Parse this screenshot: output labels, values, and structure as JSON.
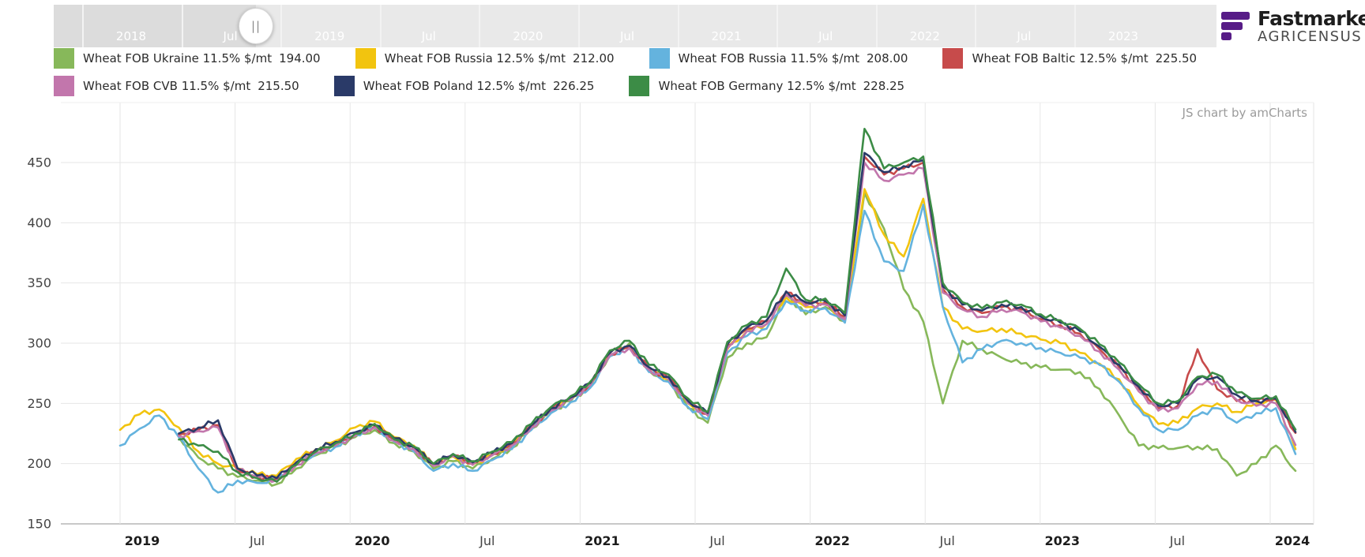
{
  "brand": {
    "name": "Fastmarkets",
    "sub": "AGRICENSUS",
    "logo_color": "#571C87"
  },
  "watermark": "JS chart by amCharts",
  "navigator": {
    "labels": [
      "2018",
      "Jul",
      "2019",
      "Jul",
      "2020",
      "Jul",
      "2021",
      "Jul",
      "2022",
      "Jul",
      "2023"
    ],
    "grabber_glyph": "||"
  },
  "legend": {
    "rows": [
      [
        {
          "label": "Wheat FOB Ukraine 11.5% $/mt",
          "value": "194.00",
          "color": "#87B85A"
        },
        {
          "label": "Wheat FOB Russia 12.5% $/mt",
          "value": "212.00",
          "color": "#F2C40F"
        },
        {
          "label": "Wheat FOB Russia 11.5% $/mt",
          "value": "208.00",
          "color": "#64B3DE"
        },
        {
          "label": "Wheat FOB Baltic 12.5% $/mt",
          "value": "225.50",
          "color": "#C74B4B"
        }
      ],
      [
        {
          "label": "Wheat FOB CVB 11.5% $/mt",
          "value": "215.50",
          "color": "#C276AC"
        },
        {
          "label": "Wheat FOB Poland 12.5% $/mt",
          "value": "226.25",
          "color": "#2A3A68"
        },
        {
          "label": "Wheat FOB Germany 12.5% $/mt",
          "value": "228.25",
          "color": "#3C8C46"
        }
      ]
    ]
  },
  "chart_data": {
    "type": "line",
    "unit": "$/mt",
    "ylim": [
      150,
      480
    ],
    "y_ticks": [
      450,
      400,
      350,
      300,
      250,
      200,
      150
    ],
    "x_axis_labels": [
      "2019",
      "Jul",
      "2020",
      "Jul",
      "2021",
      "Jul",
      "2022",
      "Jul",
      "2023",
      "Jul",
      "2024"
    ],
    "months": [
      "2019-01",
      "2019-02",
      "2019-03",
      "2019-04",
      "2019-05",
      "2019-06",
      "2019-07",
      "2019-08",
      "2019-09",
      "2019-10",
      "2019-11",
      "2019-12",
      "2020-01",
      "2020-02",
      "2020-03",
      "2020-04",
      "2020-05",
      "2020-06",
      "2020-07",
      "2020-08",
      "2020-09",
      "2020-10",
      "2020-11",
      "2020-12",
      "2021-01",
      "2021-02",
      "2021-03",
      "2021-04",
      "2021-05",
      "2021-06",
      "2021-07",
      "2021-08",
      "2021-09",
      "2021-10",
      "2021-11",
      "2021-12",
      "2022-01",
      "2022-02",
      "2022-03",
      "2022-04",
      "2022-05",
      "2022-06",
      "2022-07",
      "2022-08",
      "2022-09",
      "2022-10",
      "2022-11",
      "2022-12",
      "2023-01",
      "2023-02",
      "2023-03",
      "2023-04",
      "2023-05",
      "2023-06",
      "2023-07",
      "2023-08",
      "2023-09",
      "2023-10",
      "2023-11",
      "2023-12",
      "2024-01"
    ],
    "series": [
      {
        "name": "Wheat FOB Ukraine 11.5% $/mt",
        "color": "#87B85A",
        "last": 194.0,
        "values": [
          null,
          null,
          null,
          222,
          205,
          196,
          189,
          186,
          183,
          196,
          207,
          214,
          222,
          228,
          217,
          210,
          196,
          202,
          196,
          204,
          213,
          229,
          243,
          252,
          264,
          290,
          300,
          277,
          268,
          246,
          234,
          288,
          300,
          305,
          340,
          324,
          330,
          318,
          425,
          395,
          345,
          318,
          250,
          302,
          295,
          288,
          283,
          280,
          278,
          276,
          262,
          240,
          215,
          213,
          213,
          214,
          212,
          190,
          200,
          215,
          194
        ]
      },
      {
        "name": "Wheat FOB Russia 12.5% $/mt",
        "color": "#F2C40F",
        "last": 212.0,
        "values": [
          228,
          241,
          245,
          230,
          210,
          200,
          196,
          191,
          190,
          204,
          212,
          219,
          230,
          235,
          222,
          215,
          200,
          206,
          199,
          207,
          216,
          232,
          245,
          254,
          266,
          292,
          298,
          278,
          270,
          250,
          240,
          295,
          310,
          316,
          338,
          330,
          332,
          320,
          428,
          390,
          372,
          420,
          330,
          312,
          310,
          312,
          308,
          303,
          300,
          292,
          283,
          270,
          248,
          233,
          234,
          246,
          250,
          243,
          250,
          253,
          212
        ]
      },
      {
        "name": "Wheat FOB Russia 11.5% $/mt",
        "color": "#64B3DE",
        "last": 208.0,
        "values": [
          215,
          229,
          240,
          222,
          196,
          176,
          186,
          184,
          186,
          199,
          208,
          214,
          224,
          230,
          218,
          210,
          194,
          200,
          194,
          203,
          212,
          228,
          242,
          251,
          263,
          289,
          296,
          276,
          268,
          247,
          237,
          292,
          306,
          312,
          335,
          327,
          329,
          317,
          410,
          368,
          360,
          415,
          330,
          284,
          295,
          302,
          300,
          296,
          292,
          288,
          282,
          268,
          246,
          228,
          228,
          240,
          246,
          234,
          242,
          246,
          208
        ]
      },
      {
        "name": "Wheat FOB Baltic 12.5% $/mt",
        "color": "#C74B4B",
        "last": 225.5,
        "values": [
          null,
          null,
          null,
          224,
          228,
          232,
          194,
          189,
          187,
          200,
          210,
          216,
          224,
          231,
          220,
          213,
          199,
          207,
          200,
          208,
          216,
          231,
          245,
          254,
          266,
          291,
          297,
          279,
          271,
          251,
          241,
          298,
          312,
          318,
          342,
          333,
          334,
          322,
          455,
          440,
          445,
          450,
          345,
          330,
          325,
          330,
          328,
          320,
          315,
          308,
          295,
          280,
          262,
          246,
          248,
          295,
          262,
          252,
          252,
          254,
          225.5
        ]
      },
      {
        "name": "Wheat FOB CVB 11.5% $/mt",
        "color": "#C276AC",
        "last": 215.5,
        "values": [
          null,
          null,
          null,
          223,
          227,
          230,
          195,
          189,
          186,
          199,
          209,
          215,
          223,
          230,
          219,
          212,
          198,
          206,
          199,
          207,
          215,
          230,
          244,
          253,
          265,
          290,
          296,
          278,
          270,
          250,
          240,
          296,
          310,
          316,
          340,
          331,
          332,
          320,
          450,
          435,
          440,
          445,
          342,
          328,
          322,
          328,
          326,
          318,
          313,
          306,
          293,
          278,
          260,
          244,
          246,
          266,
          268,
          253,
          248,
          250,
          215.5
        ]
      },
      {
        "name": "Wheat FOB Poland 12.5% $/mt",
        "color": "#2A3A68",
        "last": 226.25,
        "values": [
          null,
          null,
          null,
          225,
          230,
          236,
          196,
          190,
          188,
          201,
          212,
          218,
          226,
          232,
          221,
          214,
          200,
          208,
          201,
          209,
          217,
          232,
          246,
          255,
          267,
          292,
          298,
          280,
          272,
          252,
          242,
          299,
          313,
          319,
          343,
          334,
          335,
          323,
          458,
          442,
          447,
          452,
          347,
          332,
          327,
          332,
          330,
          322,
          317,
          310,
          297,
          282,
          264,
          248,
          250,
          270,
          272,
          257,
          252,
          254,
          226.25
        ]
      },
      {
        "name": "Wheat FOB Germany 12.5% $/mt",
        "color": "#3C8C46",
        "last": 228.25,
        "values": [
          null,
          null,
          null,
          220,
          215,
          210,
          193,
          188,
          185,
          199,
          210,
          217,
          225,
          233,
          220,
          214,
          200,
          208,
          202,
          210,
          218,
          233,
          247,
          256,
          268,
          294,
          302,
          282,
          274,
          254,
          243,
          301,
          315,
          322,
          362,
          336,
          337,
          325,
          478,
          445,
          450,
          455,
          350,
          334,
          329,
          334,
          332,
          324,
          319,
          312,
          299,
          284,
          266,
          250,
          252,
          272,
          274,
          259,
          254,
          256,
          228.25
        ]
      }
    ],
    "grid": true,
    "legend_position": "top"
  }
}
